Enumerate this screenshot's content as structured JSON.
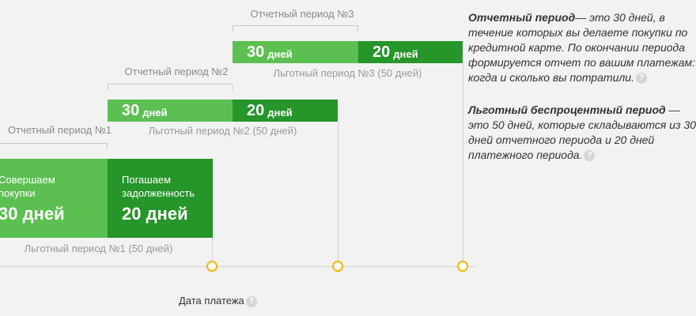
{
  "periods": [
    {
      "label": "Отчетный период №1",
      "purchase_text_1": "Совершаем",
      "purchase_text_2": "покупки",
      "purchase_days": "30 дней",
      "repay_text_1": "Погашаем",
      "repay_text_2": "задолженность",
      "repay_days": "20 дней",
      "grace": "Льготный период №1 (50 дней)"
    },
    {
      "label": "Отчетный период №2",
      "purchase_num": "30",
      "purchase_unit": "дней",
      "repay_num": "20",
      "repay_unit": "дней",
      "grace": "Льготный период №2 (50 дней)"
    },
    {
      "label": "Отчетный период №3",
      "purchase_num": "30",
      "purchase_unit": "дней",
      "repay_num": "20",
      "repay_unit": "дней",
      "grace": "Льготный период №3 (50 дней)"
    }
  ],
  "payment_date": "Дата платежа",
  "help_glyph": "?",
  "info": {
    "reporting_title": "Отчетный период",
    "reporting_lines": [
      "— это 30 дней, в",
      "течение которых вы делаете покупки по",
      "кредитной карте. По окончании периода",
      "формируется отчет по вашим платежам:",
      "когда и сколько вы потратили."
    ],
    "grace_title": "Льготный беспроцентный период",
    "grace_lines": [
      " —",
      "это 50 дней, которые складываются из 30",
      "дней отчетного периода и 20 дней",
      "платежного периода."
    ]
  },
  "colors": {
    "light_green": "#5cbf51",
    "dark_green": "#26952a",
    "dot_orange": "#f4b400"
  }
}
